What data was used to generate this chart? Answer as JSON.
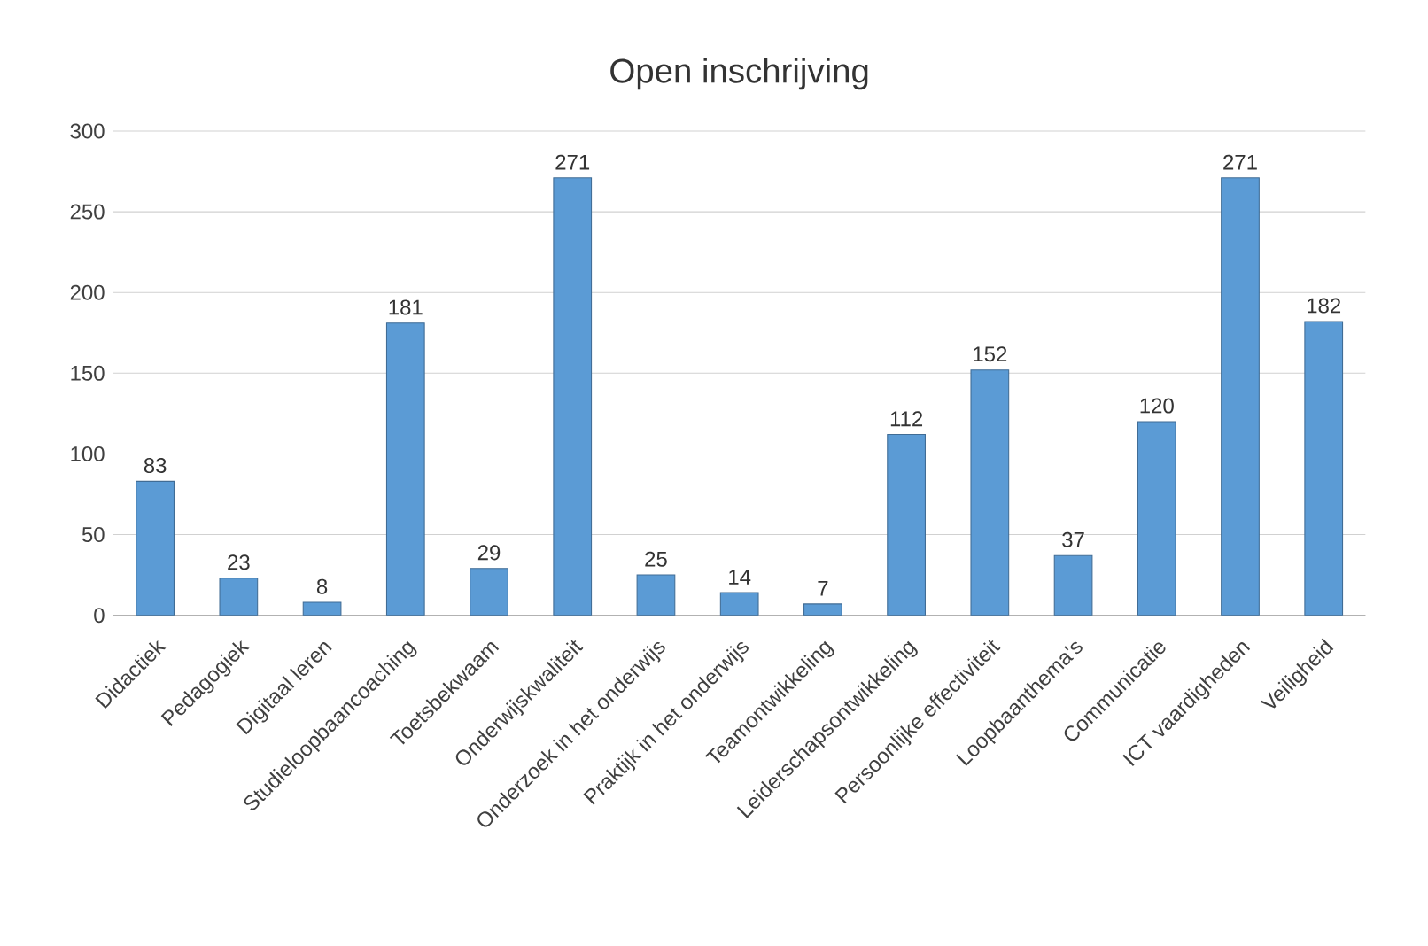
{
  "chart_data": {
    "type": "bar",
    "title": "Open inschrijving",
    "categories": [
      "Didactiek",
      "Pedagogiek",
      "Digitaal leren",
      "Studieloopbaancoaching",
      "Toetsbekwaam",
      "Onderwijskwaliteit",
      "Onderzoek in het onderwijs",
      "Praktijk in het onderwijs",
      "Teamontwikkeling",
      "Leiderschapsontwikkeling",
      "Persoonlijke effectiviteit",
      "Loopbaanthema's",
      "Communicatie",
      "ICT vaardigheden",
      "Veiligheid"
    ],
    "values": [
      83,
      23,
      8,
      181,
      29,
      271,
      25,
      14,
      7,
      112,
      152,
      37,
      120,
      271,
      182
    ],
    "color": "#5b9bd5",
    "ylim": [
      0,
      300
    ],
    "yticks": [
      0,
      50,
      100,
      150,
      200,
      250,
      300
    ],
    "grid": "y",
    "data_labels": true
  }
}
